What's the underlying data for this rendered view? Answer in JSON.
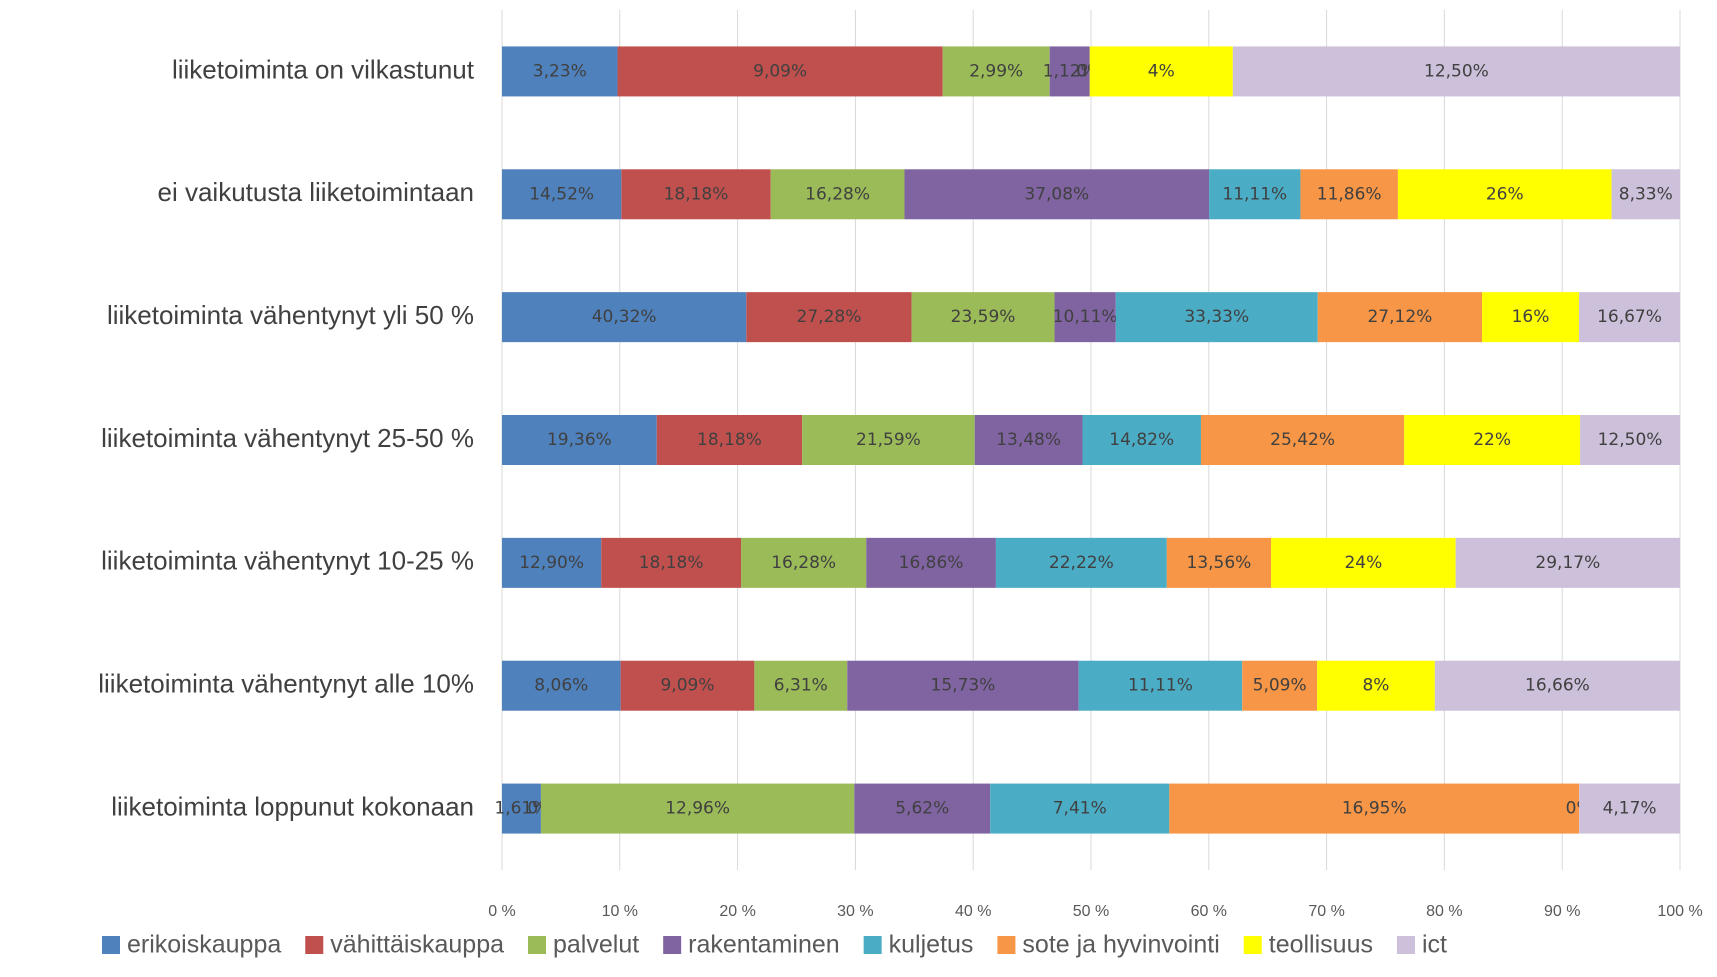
{
  "chart_data": {
    "type": "bar",
    "orientation": "horizontal",
    "stacking": "percent",
    "categories": [
      "liiketoiminta on vilkastunut",
      "ei vaikutusta liiketoimintaan",
      "liiketoiminta vähentynyt yli 50 %",
      "liiketoiminta vähentynyt 25-50 %",
      "liiketoiminta vähentynyt 10-25 %",
      "liiketoiminta vähentynyt alle 10%",
      "liiketoiminta loppunut kokonaan"
    ],
    "series": [
      {
        "name": "erikoiskauppa",
        "color": "#4f81bd",
        "values": [
          3.23,
          14.52,
          40.32,
          19.36,
          12.9,
          8.06,
          1.61
        ],
        "value_labels": [
          "3,23%",
          "14,52%",
          "40,32%",
          "19,36%",
          "12,90%",
          "8,06%",
          "1,61%"
        ]
      },
      {
        "name": "vähittäiskauppa",
        "color": "#c0504d",
        "values": [
          9.09,
          18.18,
          27.28,
          18.18,
          18.18,
          9.09,
          0
        ],
        "value_labels": [
          "9,09%",
          "18,18%",
          "27,28%",
          "18,18%",
          "18,18%",
          "9,09%",
          "0%"
        ]
      },
      {
        "name": "palvelut",
        "color": "#9bbb59",
        "values": [
          2.99,
          16.28,
          23.59,
          21.59,
          16.28,
          6.31,
          12.96
        ],
        "value_labels": [
          "2,99%",
          "16,28%",
          "23,59%",
          "21,59%",
          "16,28%",
          "6,31%",
          "12,96%"
        ]
      },
      {
        "name": "rakentaminen",
        "color": "#8064a2",
        "values": [
          1.12,
          37.08,
          10.11,
          13.48,
          16.86,
          15.73,
          5.62
        ],
        "value_labels": [
          "1,12%",
          "37,08%",
          "10,11%",
          "13,48%",
          "16,86%",
          "15,73%",
          "5,62%"
        ]
      },
      {
        "name": "kuljetus",
        "color": "#4bacc6",
        "values": [
          0,
          11.11,
          33.33,
          14.82,
          22.22,
          11.11,
          7.41
        ],
        "value_labels": [
          "0%",
          "11,11%",
          "33,33%",
          "14,82%",
          "22,22%",
          "11,11%",
          "7,41%"
        ]
      },
      {
        "name": "sote ja hyvinvointi",
        "color": "#f79646",
        "values": [
          0,
          11.86,
          27.12,
          25.42,
          13.56,
          5.09,
          16.95
        ],
        "value_labels": [
          "0%",
          "11,86%",
          "27,12%",
          "25,42%",
          "13,56%",
          "5,09%",
          "16,95%"
        ]
      },
      {
        "name": "teollisuus",
        "color": "#ffff00",
        "values": [
          4,
          26,
          16,
          22,
          24,
          8,
          0
        ],
        "value_labels": [
          "4%",
          "26%",
          "16%",
          "22%",
          "24%",
          "8%",
          "0%"
        ]
      },
      {
        "name": "ict",
        "color": "#ccc0da",
        "values": [
          12.5,
          8.33,
          16.67,
          12.5,
          29.17,
          16.66,
          4.17
        ],
        "value_labels": [
          "12,50%",
          "8,33%",
          "16,67%",
          "12,50%",
          "29,17%",
          "16,66%",
          "4,17%"
        ]
      }
    ],
    "xlim": [
      0,
      100
    ],
    "xticks": [
      {
        "value": 0,
        "label": "0 %"
      },
      {
        "value": 10,
        "label": "10 %"
      },
      {
        "value": 20,
        "label": "20 %"
      },
      {
        "value": 30,
        "label": "30 %"
      },
      {
        "value": 40,
        "label": "40 %"
      },
      {
        "value": 50,
        "label": "50 %"
      },
      {
        "value": 60,
        "label": "60 %"
      },
      {
        "value": 70,
        "label": "70 %"
      },
      {
        "value": 80,
        "label": "80 %"
      },
      {
        "value": 90,
        "label": "90 %"
      },
      {
        "value": 100,
        "label": "100 %"
      }
    ],
    "grid": true,
    "legend": "bottom"
  }
}
